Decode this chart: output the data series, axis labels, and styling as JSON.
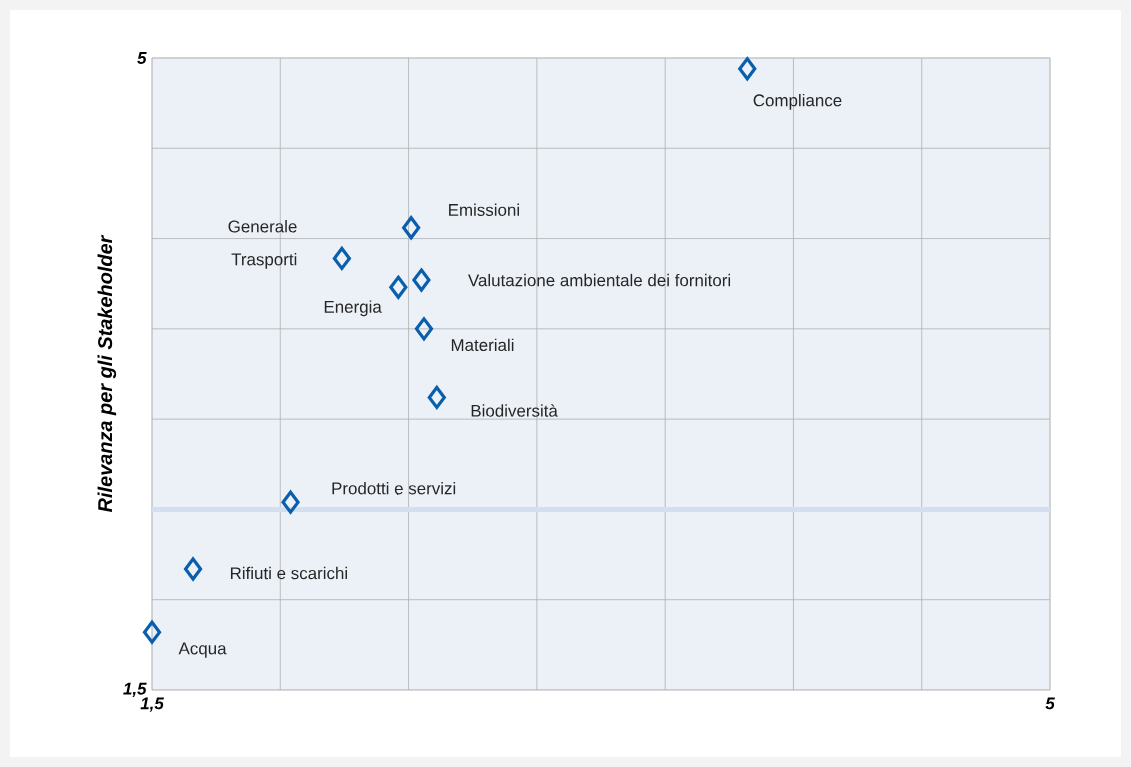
{
  "chart_data": {
    "type": "scatter",
    "ylabel": "Rilevanza per gli Stakeholder",
    "xlim": [
      1.5,
      5
    ],
    "ylim": [
      1.5,
      5
    ],
    "xticks": [
      {
        "value": 1.5,
        "label": "1,5"
      },
      {
        "value": 2,
        "label": null
      },
      {
        "value": 2.5,
        "label": null
      },
      {
        "value": 3,
        "label": null
      },
      {
        "value": 3.5,
        "label": null
      },
      {
        "value": 4,
        "label": null
      },
      {
        "value": 4.5,
        "label": null
      },
      5
    ],
    "yticks": [
      {
        "value": 1.5,
        "label": "1,5"
      },
      {
        "value": 2,
        "label": null
      },
      {
        "value": 2.5,
        "label": null
      },
      {
        "value": 3,
        "label": null
      },
      {
        "value": 3.5,
        "label": null
      },
      {
        "value": 4,
        "label": null
      },
      {
        "value": 4.5,
        "label": null
      },
      5
    ],
    "grid": true,
    "marker": "diamond",
    "ref_lines": [
      {
        "axis": "y",
        "value": 2.5,
        "color": "#d3dff0"
      }
    ],
    "series": [
      {
        "name": "Compliance",
        "color": "#0a5fad",
        "x": [
          3.82
        ],
        "values": [
          4.94
        ]
      },
      {
        "name": "Emissioni",
        "color": "#0a5fad",
        "x": [
          2.51
        ],
        "values": [
          4.06
        ]
      },
      {
        "name": "Generale Trasporti",
        "color": "#0a5fad",
        "x": [
          2.24
        ],
        "values": [
          3.89
        ]
      },
      {
        "name": "Valutazione ambientale dei fornitori",
        "color": "#0a5fad",
        "x": [
          2.55
        ],
        "values": [
          3.77
        ]
      },
      {
        "name": "Energia",
        "color": "#0a5fad",
        "x": [
          2.46
        ],
        "values": [
          3.73
        ]
      },
      {
        "name": "Materiali",
        "color": "#0a5fad",
        "x": [
          2.56
        ],
        "values": [
          3.5
        ]
      },
      {
        "name": "Biodiversità",
        "color": "#0a5fad",
        "x": [
          2.61
        ],
        "values": [
          3.12
        ]
      },
      {
        "name": "Prodotti e servizi",
        "color": "#0a5fad",
        "x": [
          2.04
        ],
        "values": [
          2.54
        ]
      },
      {
        "name": "Rifiuti e scarichi",
        "color": "#0a5fad",
        "x": [
          1.66
        ],
        "values": [
          2.17
        ]
      },
      {
        "name": "Acqua",
        "color": "#0a5fad",
        "x": [
          1.5
        ],
        "values": [
          1.82
        ]
      }
    ]
  }
}
